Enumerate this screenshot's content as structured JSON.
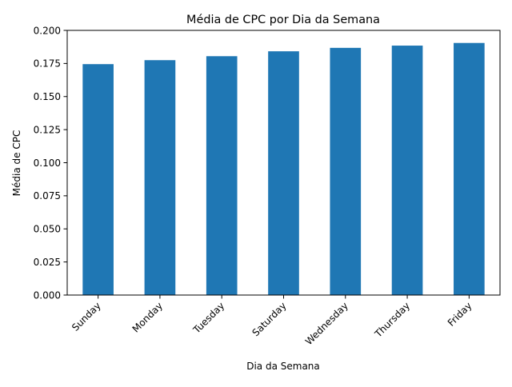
{
  "chart_data": {
    "type": "bar",
    "title": "Média de CPC por Dia da Semana",
    "xlabel": "Dia da Semana",
    "ylabel": "Média de CPC",
    "categories": [
      "Sunday",
      "Monday",
      "Tuesday",
      "Saturday",
      "Wednesday",
      "Thursday",
      "Friday"
    ],
    "values": [
      0.1745,
      0.1775,
      0.1805,
      0.1842,
      0.1868,
      0.1885,
      0.1905
    ],
    "ylim": [
      0,
      0.2
    ],
    "yticks": [
      "0.000",
      "0.025",
      "0.050",
      "0.075",
      "0.100",
      "0.125",
      "0.150",
      "0.175",
      "0.200"
    ],
    "grid": false,
    "legend": "none",
    "bar_color": "#1f77b4"
  }
}
